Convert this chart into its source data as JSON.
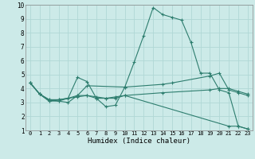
{
  "xlabel": "Humidex (Indice chaleur)",
  "bg_color": "#cceae8",
  "grid_color": "#b0d8d5",
  "line_color": "#2d7d6e",
  "xlim": [
    -0.5,
    23.5
  ],
  "ylim": [
    1,
    10
  ],
  "xticks": [
    0,
    1,
    2,
    3,
    4,
    5,
    6,
    7,
    8,
    9,
    10,
    11,
    12,
    13,
    14,
    15,
    16,
    17,
    18,
    19,
    20,
    21,
    22,
    23
  ],
  "yticks": [
    1,
    2,
    3,
    4,
    5,
    6,
    7,
    8,
    9,
    10
  ],
  "lines": [
    {
      "x": [
        0,
        1,
        2,
        3,
        4,
        5,
        6,
        7,
        8,
        9,
        10,
        11,
        12,
        13,
        14,
        15,
        16,
        17,
        18,
        19,
        20,
        21,
        22,
        23
      ],
      "y": [
        4.4,
        3.6,
        3.1,
        3.2,
        3.3,
        4.8,
        4.5,
        3.3,
        2.7,
        2.8,
        4.1,
        5.9,
        7.8,
        9.8,
        9.3,
        9.1,
        8.9,
        7.3,
        5.1,
        5.1,
        3.9,
        3.7,
        1.3,
        1.1
      ]
    },
    {
      "x": [
        0,
        1,
        2,
        3,
        5,
        6,
        10,
        14,
        15,
        19,
        20,
        21,
        22,
        23
      ],
      "y": [
        4.4,
        3.6,
        3.1,
        3.1,
        3.5,
        4.2,
        4.1,
        4.3,
        4.4,
        4.9,
        5.1,
        3.9,
        3.7,
        3.5
      ]
    },
    {
      "x": [
        0,
        1,
        2,
        3,
        4,
        5,
        6,
        7,
        8,
        9,
        10,
        14,
        19,
        20,
        21,
        22,
        23
      ],
      "y": [
        4.4,
        3.6,
        3.2,
        3.1,
        3.0,
        3.5,
        3.5,
        3.3,
        3.3,
        3.4,
        3.5,
        3.7,
        3.9,
        4.0,
        4.0,
        3.8,
        3.6
      ]
    },
    {
      "x": [
        0,
        1,
        2,
        3,
        5,
        6,
        7,
        8,
        9,
        10,
        21,
        22,
        23
      ],
      "y": [
        4.4,
        3.6,
        3.2,
        3.2,
        3.4,
        3.5,
        3.4,
        3.3,
        3.3,
        3.5,
        1.3,
        1.3,
        1.1
      ]
    }
  ]
}
